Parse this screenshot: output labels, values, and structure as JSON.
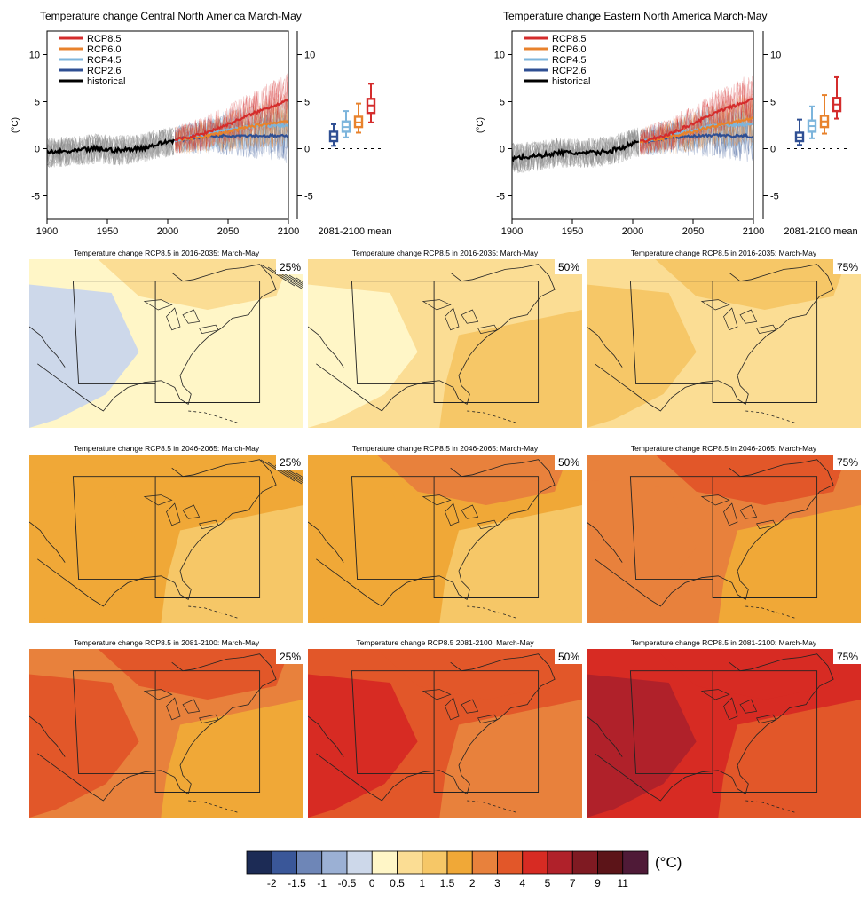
{
  "colors": {
    "RCP8.5": "#d42c2c",
    "RCP6.0": "#e8822c",
    "RCP4.5": "#7db5dc",
    "RCP2.6": "#2f4f93",
    "historical": "#000000",
    "hist_ensemble": "#8c8c8c",
    "map_land_border": "#222222"
  },
  "chart_data": [
    {
      "type": "line",
      "title": "Temperature change Central North America March-May",
      "ylabel": "(°C)",
      "xlim": [
        1900,
        2100
      ],
      "ylim": [
        -7.5,
        12.5
      ],
      "xticks": [
        1900,
        1950,
        2000,
        2050,
        2100
      ],
      "yticks": [
        -5,
        0,
        5,
        10
      ],
      "legend": "top-left",
      "series": [
        {
          "name": "RCP8.5",
          "color_key": "RCP8.5",
          "x": [
            2006,
            2030,
            2050,
            2070,
            2100
          ],
          "y": [
            0.9,
            1.6,
            2.6,
            3.7,
            5.2
          ]
        },
        {
          "name": "RCP6.0",
          "color_key": "RCP6.0",
          "x": [
            2006,
            2030,
            2050,
            2070,
            2100
          ],
          "y": [
            0.9,
            1.3,
            1.8,
            2.4,
            3.0
          ]
        },
        {
          "name": "RCP4.5",
          "color_key": "RCP4.5",
          "x": [
            2006,
            2030,
            2050,
            2070,
            2100
          ],
          "y": [
            0.9,
            1.5,
            2.0,
            2.4,
            2.5
          ]
        },
        {
          "name": "RCP2.6",
          "color_key": "RCP2.6",
          "x": [
            2006,
            2030,
            2050,
            2070,
            2100
          ],
          "y": [
            0.9,
            1.3,
            1.4,
            1.4,
            1.3
          ]
        },
        {
          "name": "historical",
          "color_key": "historical",
          "x": [
            1900,
            1920,
            1940,
            1960,
            1980,
            2005
          ],
          "y": [
            -0.4,
            -0.3,
            0.0,
            -0.2,
            0.1,
            0.9
          ]
        }
      ],
      "boxplot": {
        "label": "2081-2100 mean",
        "boxes": [
          {
            "scenario": "RCP2.6",
            "min": 0.3,
            "q1": 0.8,
            "median": 1.3,
            "q3": 1.8,
            "max": 2.6
          },
          {
            "scenario": "RCP4.5",
            "min": 1.2,
            "q1": 1.8,
            "median": 2.3,
            "q3": 2.9,
            "max": 4.0
          },
          {
            "scenario": "RCP6.0",
            "min": 1.7,
            "q1": 2.3,
            "median": 2.8,
            "q3": 3.4,
            "max": 4.8
          },
          {
            "scenario": "RCP8.5",
            "min": 2.8,
            "q1": 3.8,
            "median": 4.6,
            "q3": 5.3,
            "max": 6.9
          }
        ]
      }
    },
    {
      "type": "line",
      "title": "Temperature change Eastern North America March-May",
      "ylabel": "(°C)",
      "xlim": [
        1900,
        2100
      ],
      "ylim": [
        -7.5,
        12.5
      ],
      "xticks": [
        1900,
        1950,
        2000,
        2050,
        2100
      ],
      "yticks": [
        -5,
        0,
        5,
        10
      ],
      "legend": "top-left",
      "series": [
        {
          "name": "RCP8.5",
          "color_key": "RCP8.5",
          "x": [
            2006,
            2030,
            2050,
            2070,
            2100
          ],
          "y": [
            0.7,
            1.5,
            2.7,
            3.9,
            5.3
          ]
        },
        {
          "name": "RCP6.0",
          "color_key": "RCP6.0",
          "x": [
            2006,
            2030,
            2050,
            2070,
            2100
          ],
          "y": [
            0.7,
            1.2,
            1.8,
            2.5,
            3.2
          ]
        },
        {
          "name": "RCP4.5",
          "color_key": "RCP4.5",
          "x": [
            2006,
            2030,
            2050,
            2070,
            2100
          ],
          "y": [
            0.7,
            1.4,
            2.0,
            2.5,
            2.6
          ]
        },
        {
          "name": "RCP2.6",
          "color_key": "RCP2.6",
          "x": [
            2006,
            2030,
            2050,
            2070,
            2100
          ],
          "y": [
            0.7,
            1.2,
            1.3,
            1.4,
            1.3
          ]
        },
        {
          "name": "historical",
          "color_key": "historical",
          "x": [
            1900,
            1920,
            1940,
            1960,
            1980,
            2005
          ],
          "y": [
            -1.0,
            -0.8,
            -0.4,
            -0.5,
            -0.3,
            0.7
          ]
        }
      ],
      "boxplot": {
        "label": "2081-2100 mean",
        "boxes": [
          {
            "scenario": "RCP2.6",
            "min": 0.4,
            "q1": 0.8,
            "median": 1.2,
            "q3": 1.7,
            "max": 3.1
          },
          {
            "scenario": "RCP4.5",
            "min": 1.1,
            "q1": 1.8,
            "median": 2.4,
            "q3": 3.0,
            "max": 4.5
          },
          {
            "scenario": "RCP6.0",
            "min": 1.6,
            "q1": 2.3,
            "median": 2.9,
            "q3": 3.5,
            "max": 5.7
          },
          {
            "scenario": "RCP8.5",
            "min": 3.2,
            "q1": 4.0,
            "median": 4.7,
            "q3": 5.4,
            "max": 7.6
          }
        ]
      }
    },
    {
      "type": "heatmap",
      "maps": [
        {
          "title": "Temperature change RCP8.5 in 2016-2035: March-May",
          "percentile": "25%",
          "base_level": 0,
          "patches": [
            -1,
            0,
            1
          ]
        },
        {
          "title": "Temperature change RCP8.5 in 2016-2035: March-May",
          "percentile": "50%",
          "base_level": 1,
          "patches": [
            0,
            2,
            1
          ]
        },
        {
          "title": "Temperature change RCP8.5 in 2016-2035: March-May",
          "percentile": "75%",
          "base_level": 1,
          "patches": [
            2,
            1,
            2
          ]
        },
        {
          "title": "Temperature change RCP8.5 in 2046-2065: March-May",
          "percentile": "25%",
          "base_level": 3,
          "patches": [
            3,
            2,
            3
          ]
        },
        {
          "title": "Temperature change RCP8.5 in 2046-2065: March-May",
          "percentile": "50%",
          "base_level": 3,
          "patches": [
            3,
            2,
            4
          ]
        },
        {
          "title": "Temperature change RCP8.5 in 2046-2065: March-May",
          "percentile": "75%",
          "base_level": 4,
          "patches": [
            4,
            3,
            5
          ]
        },
        {
          "title": "Temperature change RCP8.5 in 2081-2100: March-May",
          "percentile": "25%",
          "base_level": 4,
          "patches": [
            5,
            3,
            5
          ]
        },
        {
          "title": "Temperature change RCP8.5 2081-2100: March-May",
          "percentile": "50%",
          "base_level": 5,
          "patches": [
            6,
            4,
            5
          ]
        },
        {
          "title": "Temperature change RCP8.5 in 2081-2100: March-May",
          "percentile": "75%",
          "base_level": 6,
          "patches": [
            7,
            5,
            6
          ]
        }
      ],
      "colorbar": {
        "unit": "(°C)",
        "colors": [
          "#1c2b55",
          "#3a5799",
          "#6e86b7",
          "#9bb0d4",
          "#cdd8ea",
          "#fff6c7",
          "#fbdd94",
          "#f6c767",
          "#f0a837",
          "#e8813c",
          "#e25729",
          "#d72b23",
          "#b0212a",
          "#7f1a22",
          "#5c1418",
          "#4f1a37"
        ],
        "ticks": [
          "-2",
          "-1.5",
          "-1",
          "-0.5",
          "0",
          "0.5",
          "1",
          "1.5",
          "2",
          "3",
          "4",
          "5",
          "7",
          "9",
          "11"
        ]
      }
    }
  ]
}
